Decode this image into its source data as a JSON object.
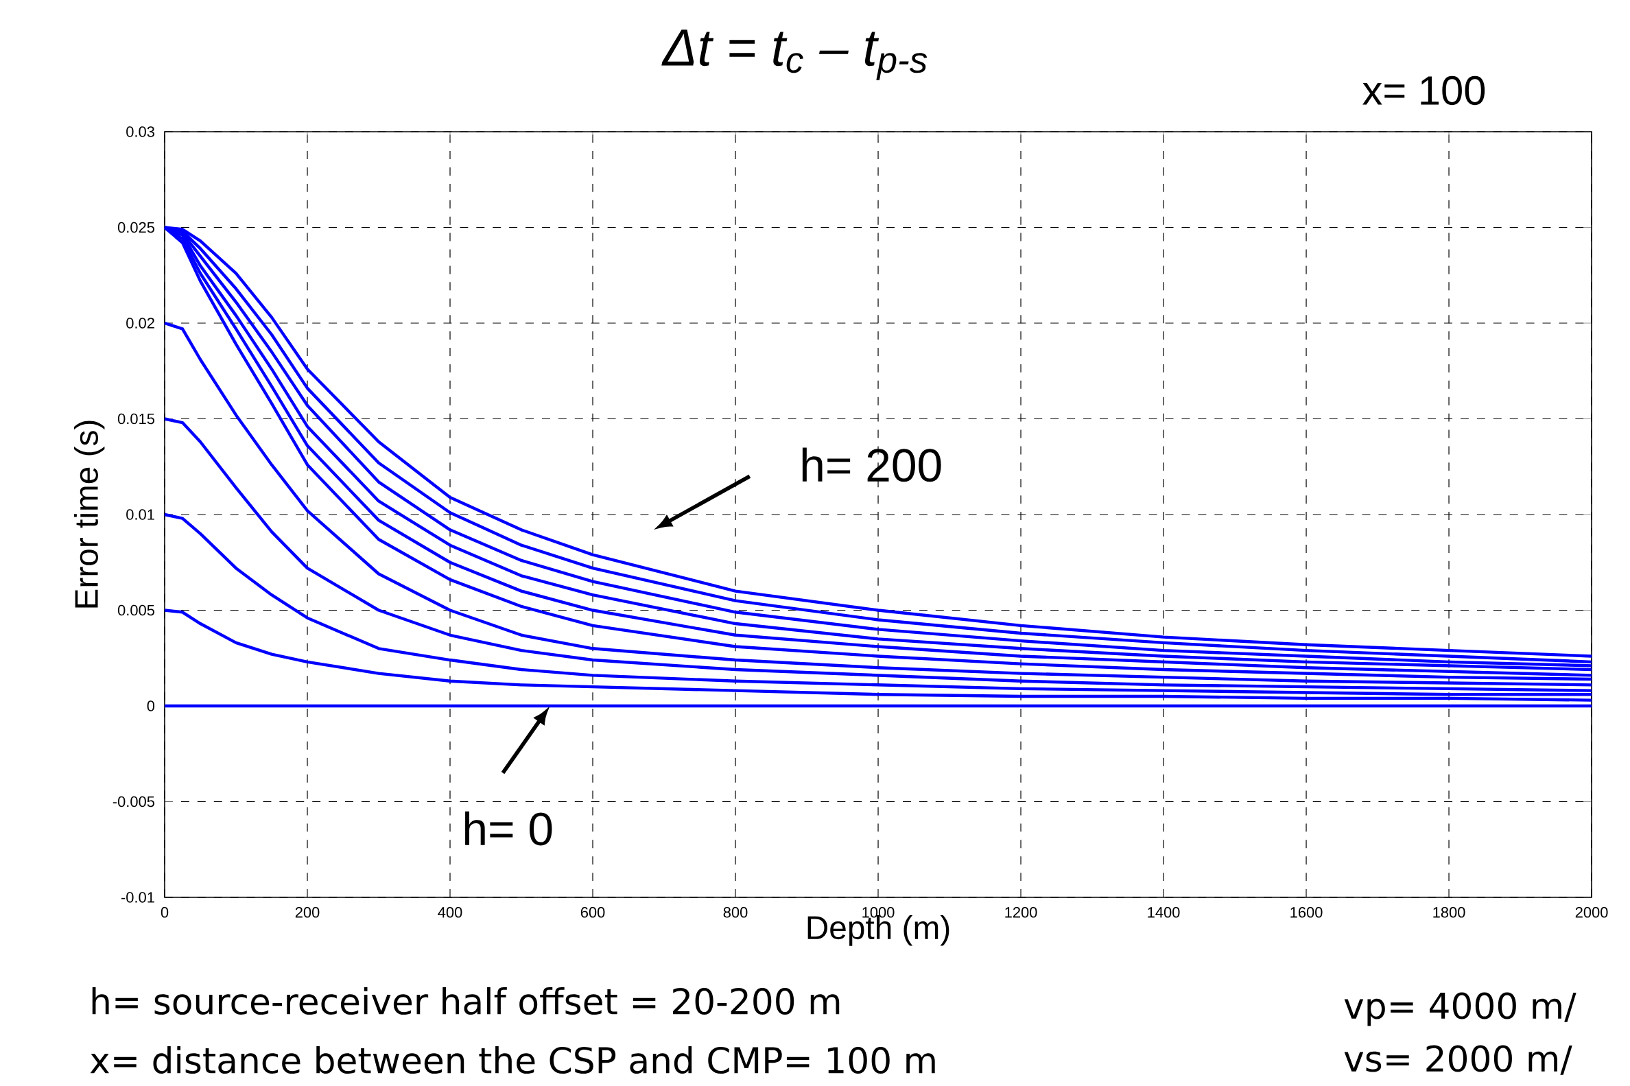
{
  "chart_data": {
    "type": "line",
    "title": "Δt = t$_{c}$ – t$_{p-s}$",
    "xlabel": "Depth (m)",
    "ylabel": "Error time (s)",
    "x": [
      0,
      25,
      50,
      100,
      150,
      200,
      300,
      400,
      500,
      600,
      800,
      1000,
      1200,
      1400,
      1600,
      1800,
      2000
    ],
    "xlim": [
      0,
      2000
    ],
    "xticks": [
      0,
      200,
      400,
      600,
      800,
      1000,
      1200,
      1400,
      1600,
      1800,
      2000
    ],
    "ylim": [
      -0.01,
      0.03
    ],
    "yticks": [
      -0.01,
      -0.005,
      0,
      0.005,
      0.01,
      0.015,
      0.02,
      0.025,
      0.03
    ],
    "grid": true,
    "marker": "none",
    "line_style": "solid",
    "series": [
      {
        "color": "#0000ff",
        "values": [
          0,
          0,
          0,
          0,
          0,
          0,
          0,
          0,
          0,
          0,
          0,
          0,
          0,
          0,
          0,
          0,
          0
        ]
      },
      {
        "color": "#0000ff",
        "values": [
          0.005,
          0.0049,
          0.0043,
          0.0033,
          0.0027,
          0.0023,
          0.0017,
          0.0013,
          0.0011,
          0.001,
          0.0008,
          0.0006,
          0.0005,
          0.0005,
          0.0004,
          0.0004,
          0.0003
        ]
      },
      {
        "color": "#0000ff",
        "values": [
          0.01,
          0.0098,
          0.009,
          0.0072,
          0.0058,
          0.0046,
          0.003,
          0.0024,
          0.0019,
          0.0016,
          0.0013,
          0.0011,
          0.0009,
          0.0008,
          0.0007,
          0.0006,
          0.0006
        ]
      },
      {
        "color": "#0000ff",
        "values": [
          0.015,
          0.0148,
          0.0138,
          0.0114,
          0.0091,
          0.0072,
          0.005,
          0.0037,
          0.0029,
          0.0024,
          0.0019,
          0.0016,
          0.0013,
          0.0011,
          0.001,
          0.0009,
          0.0008
        ]
      },
      {
        "color": "#0000ff",
        "values": [
          0.02,
          0.0197,
          0.0181,
          0.0152,
          0.0126,
          0.0102,
          0.0069,
          0.005,
          0.0037,
          0.003,
          0.0024,
          0.002,
          0.0017,
          0.0015,
          0.0013,
          0.0012,
          0.0011
        ]
      },
      {
        "color": "#0000ff",
        "values": [
          0.025,
          0.0242,
          0.0222,
          0.0189,
          0.0158,
          0.0126,
          0.0087,
          0.0066,
          0.0052,
          0.0042,
          0.0031,
          0.0026,
          0.0022,
          0.0019,
          0.0017,
          0.0015,
          0.0014
        ]
      },
      {
        "color": "#0000ff",
        "values": [
          0.025,
          0.0244,
          0.0226,
          0.0197,
          0.0167,
          0.0136,
          0.0097,
          0.0075,
          0.006,
          0.005,
          0.0037,
          0.0031,
          0.0026,
          0.0023,
          0.002,
          0.0018,
          0.0016
        ]
      },
      {
        "color": "#0000ff",
        "values": [
          0.025,
          0.0246,
          0.023,
          0.0204,
          0.0176,
          0.0146,
          0.0107,
          0.0084,
          0.0068,
          0.0058,
          0.0043,
          0.0035,
          0.003,
          0.0026,
          0.0023,
          0.0021,
          0.0019
        ]
      },
      {
        "color": "#0000ff",
        "values": [
          0.025,
          0.0247,
          0.0235,
          0.0211,
          0.0185,
          0.0157,
          0.0117,
          0.0092,
          0.0076,
          0.0065,
          0.0049,
          0.004,
          0.0034,
          0.0029,
          0.0026,
          0.0023,
          0.0021
        ]
      },
      {
        "color": "#0000ff",
        "values": [
          0.025,
          0.0248,
          0.0239,
          0.0218,
          0.0194,
          0.0166,
          0.0127,
          0.0101,
          0.0084,
          0.0072,
          0.0055,
          0.0045,
          0.0038,
          0.0033,
          0.0029,
          0.0026,
          0.0023
        ]
      },
      {
        "color": "#0000ff",
        "values": [
          0.025,
          0.0249,
          0.0243,
          0.0226,
          0.0203,
          0.0176,
          0.0138,
          0.0109,
          0.0092,
          0.0079,
          0.006,
          0.005,
          0.0042,
          0.0036,
          0.0032,
          0.0029,
          0.0026
        ]
      }
    ],
    "annotations": [
      "h= 200",
      {
        "text": "h= 0",
        "x": 540,
        "y": 0
      },
      "x= 100",
      "h= source-receiver half offset = 20-200 m",
      "x= distance between the CSP and CMP= 100 m",
      "vp= 4000 m/",
      "vs= 2000 m/"
    ]
  }
}
